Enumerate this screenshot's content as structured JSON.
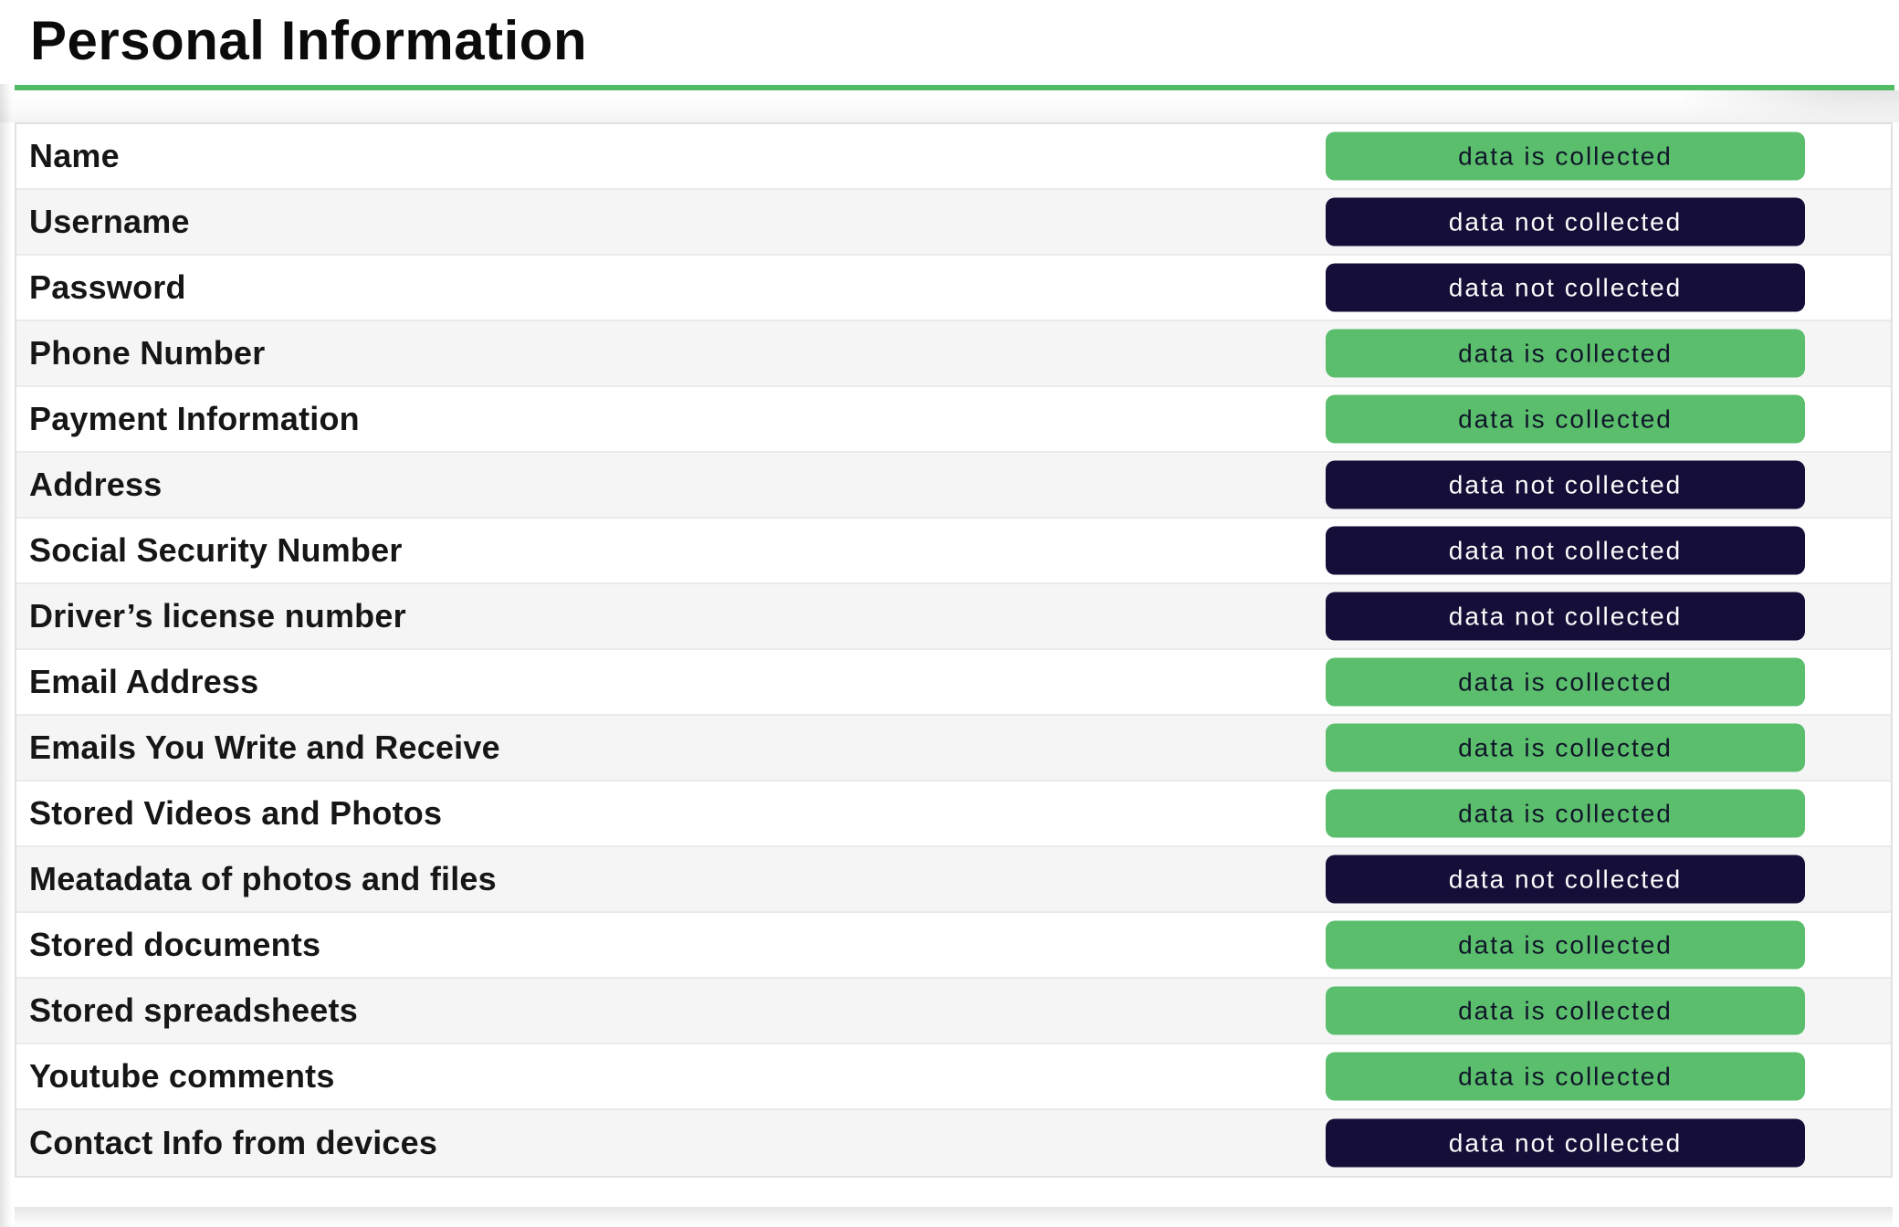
{
  "page": {
    "title": "Personal Information"
  },
  "colors": {
    "accent_green": "#53ba66",
    "badge_green": "#5abe6c",
    "badge_navy": "#150e38",
    "alt_row_bg": "#f5f5f6"
  },
  "statuses": {
    "collected": "data is collected",
    "not_collected": "data not collected"
  },
  "table": {
    "rows": [
      {
        "label": "Name",
        "status": "collected",
        "status_label": "data is collected"
      },
      {
        "label": "Username",
        "status": "not-collected",
        "status_label": "data not collected"
      },
      {
        "label": "Password",
        "status": "not-collected",
        "status_label": "data not collected"
      },
      {
        "label": "Phone Number",
        "status": "collected",
        "status_label": "data is collected"
      },
      {
        "label": "Payment Information",
        "status": "collected",
        "status_label": "data is collected"
      },
      {
        "label": "Address",
        "status": "not-collected",
        "status_label": "data not collected"
      },
      {
        "label": "Social Security Number",
        "status": "not-collected",
        "status_label": "data not collected"
      },
      {
        "label": "Driver’s license number",
        "status": "not-collected",
        "status_label": "data not collected"
      },
      {
        "label": "Email Address",
        "status": "collected",
        "status_label": "data is collected"
      },
      {
        "label": "Emails You Write and Receive",
        "status": "collected",
        "status_label": "data is collected"
      },
      {
        "label": "Stored Videos and Photos",
        "status": "collected",
        "status_label": "data is collected"
      },
      {
        "label": "Meatadata of photos and files",
        "status": "not-collected",
        "status_label": "data not collected"
      },
      {
        "label": "Stored documents",
        "status": "collected",
        "status_label": "data is collected"
      },
      {
        "label": "Stored spreadsheets",
        "status": "collected",
        "status_label": "data is collected"
      },
      {
        "label": "Youtube comments",
        "status": "collected",
        "status_label": "data is collected"
      },
      {
        "label": "Contact Info from devices",
        "status": "not-collected",
        "status_label": "data not collected"
      }
    ]
  }
}
